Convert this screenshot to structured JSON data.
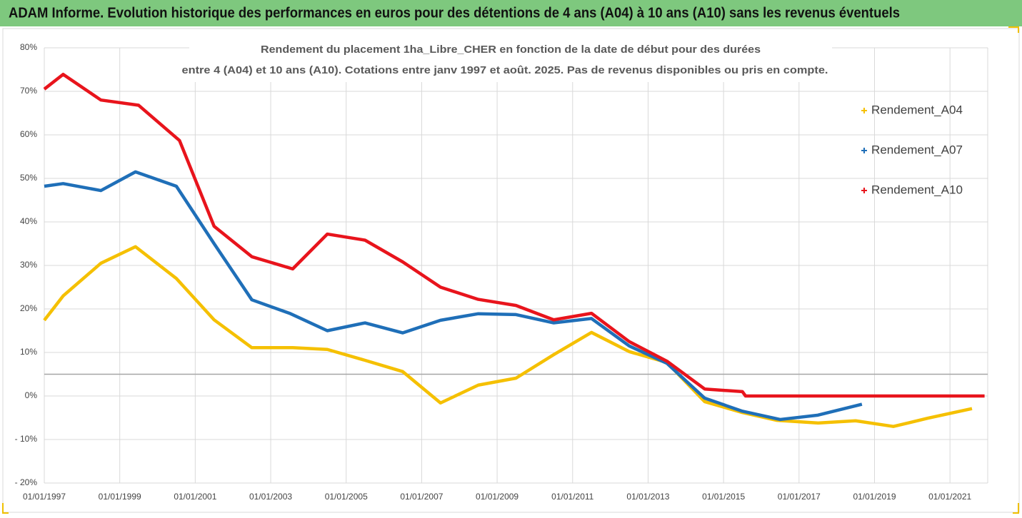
{
  "chart_data": {
    "type": "line",
    "title": "ADAM Informe. Evolution historique des performances en euros pour des détentions de 4 ans (A04) à 10 ans (A10) sans les revenus éventuels",
    "subtitle": [
      "Rendement du placement 1ha_Libre_CHER en fonction de la date de début pour des durées",
      "entre 4 (A04) et 10 ans (A10). Cotations entre janv 1997 et août. 2025. Pas de revenus disponibles ou pris en compte."
    ],
    "xlim": [
      "1997-01-01",
      "2022-01-01"
    ],
    "xticks": [
      {
        "value": "1997-01-01",
        "label": "01/01/1997"
      },
      {
        "value": "1999-01-01",
        "label": "01/01/1999"
      },
      {
        "value": "2001-01-01",
        "label": "01/01/2001"
      },
      {
        "value": "2003-01-01",
        "label": "01/01/2003"
      },
      {
        "value": "2005-01-01",
        "label": "01/01/2005"
      },
      {
        "value": "2007-01-01",
        "label": "01/01/2007"
      },
      {
        "value": "2009-01-01",
        "label": "01/01/2009"
      },
      {
        "value": "2011-01-01",
        "label": "01/01/2011"
      },
      {
        "value": "2013-01-01",
        "label": "01/01/2013"
      },
      {
        "value": "2015-01-01",
        "label": "01/01/2015"
      },
      {
        "value": "2017-01-01",
        "label": "01/01/2017"
      },
      {
        "value": "2019-01-01",
        "label": "01/01/2019"
      },
      {
        "value": "2021-01-01",
        "label": "01/01/2021"
      }
    ],
    "ylim": [
      -20,
      80
    ],
    "yticks": [
      {
        "value": -20,
        "label": "- 20%"
      },
      {
        "value": -10,
        "label": "- 10%"
      },
      {
        "value": 0,
        "label": "0%"
      },
      {
        "value": 10,
        "label": "10%"
      },
      {
        "value": 20,
        "label": "20%"
      },
      {
        "value": 30,
        "label": "30%"
      },
      {
        "value": 40,
        "label": "40%"
      },
      {
        "value": 50,
        "label": "50%"
      },
      {
        "value": 60,
        "label": "60%"
      },
      {
        "value": 70,
        "label": "70%"
      },
      {
        "value": 80,
        "label": "80%"
      }
    ],
    "grid": true,
    "reference_line": 5,
    "legend": "right",
    "series": [
      {
        "name": "Rendement_A04",
        "color": "#f5c000",
        "x": [
          "1997-01-01",
          "1997-07-01",
          "1998-07-01",
          "1999-06-01",
          "2000-07-01",
          "2001-07-01",
          "2002-07-01",
          "2003-08-01",
          "2004-07-01",
          "2005-07-01",
          "2006-07-01",
          "2007-07-01",
          "2008-07-01",
          "2009-07-01",
          "2010-07-01",
          "2011-07-01",
          "2012-07-01",
          "2013-07-01",
          "2014-07-01",
          "2015-07-01",
          "2016-06-01",
          "2017-07-01",
          "2018-07-01",
          "2019-07-01",
          "2020-06-01",
          "2021-08-01"
        ],
        "values": [
          17.4,
          23,
          30.5,
          34.3,
          27,
          17.5,
          11.1,
          11.1,
          10.7,
          8.2,
          5.6,
          -1.6,
          2.5,
          4.1,
          9.5,
          14.6,
          10.2,
          7.7,
          -1.3,
          -3.8,
          -5.6,
          -6.2,
          -5.7,
          -7.0,
          -5.1,
          -2.9
        ]
      },
      {
        "name": "Rendement_A07",
        "color": "#1f6fb8",
        "x": [
          "1997-01-01",
          "1997-07-01",
          "1998-07-01",
          "1999-06-01",
          "2000-07-01",
          "2001-07-01",
          "2002-07-01",
          "2003-07-01",
          "2004-07-01",
          "2005-07-01",
          "2006-07-01",
          "2007-07-01",
          "2008-07-01",
          "2009-07-01",
          "2010-07-01",
          "2011-07-01",
          "2012-07-01",
          "2013-07-01",
          "2014-07-01",
          "2015-07-01",
          "2016-07-01",
          "2017-07-01",
          "2018-09-01"
        ],
        "values": [
          48.2,
          48.8,
          47.2,
          51.5,
          48.2,
          35,
          22.1,
          19,
          15,
          16.8,
          14.5,
          17.4,
          18.9,
          18.7,
          16.8,
          17.8,
          11.5,
          7.5,
          -0.5,
          -3.5,
          -5.4,
          -4.4,
          -1.9
        ]
      },
      {
        "name": "Rendement_A10",
        "color": "#e8141c",
        "x": [
          "1997-01-01",
          "1997-07-01",
          "1998-07-01",
          "1999-07-01",
          "2000-08-01",
          "2001-07-01",
          "2002-07-01",
          "2003-08-01",
          "2004-07-01",
          "2005-07-01",
          "2006-07-01",
          "2007-07-01",
          "2008-07-01",
          "2009-07-01",
          "2010-07-01",
          "2011-07-01",
          "2012-07-01",
          "2013-07-01",
          "2014-07-01",
          "2015-07-01",
          "2015-08-01",
          "2021-12-01"
        ],
        "values": [
          70.5,
          73.9,
          68,
          66.8,
          58.7,
          39,
          32,
          29.2,
          37.2,
          35.8,
          30.8,
          25,
          22.2,
          20.8,
          17.5,
          19,
          12.5,
          8,
          1.6,
          1.0,
          0,
          0
        ]
      }
    ]
  }
}
